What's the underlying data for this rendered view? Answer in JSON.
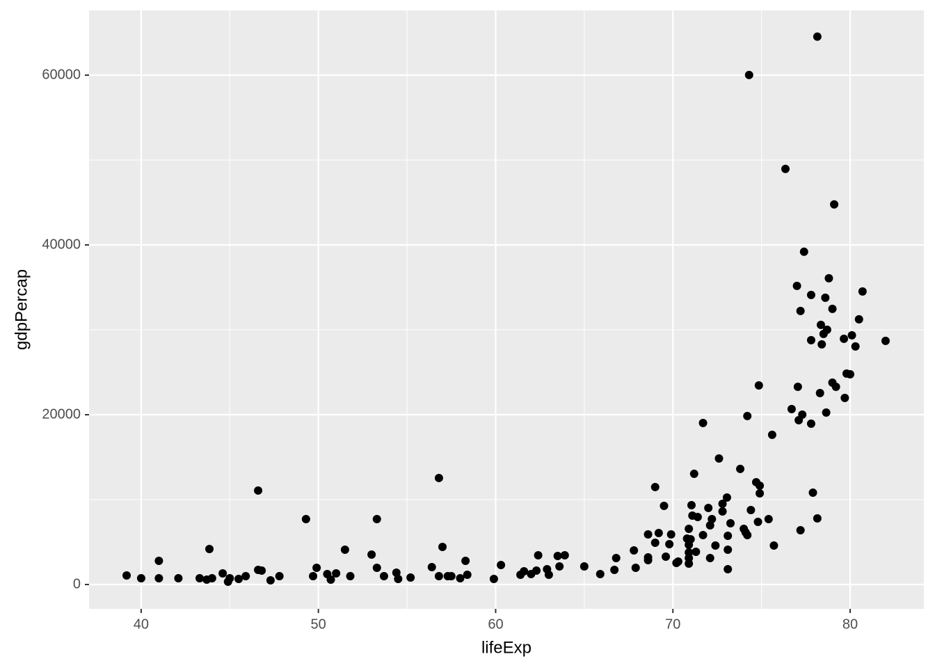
{
  "chart_data": {
    "type": "scatter",
    "x_label": "lifeExp",
    "y_label": "gdpPercap",
    "xlim": [
      37.06,
      84.16
    ],
    "ylim": [
      -2869,
      67623
    ],
    "xticks": [
      40,
      50,
      60,
      70,
      80
    ],
    "yticks": [
      0,
      20000,
      40000,
      60000
    ],
    "grid": true,
    "minor_grid": true,
    "color": "#000000",
    "x": [
      39.18,
      40.0,
      41.0,
      41.0,
      42.1,
      43.3,
      43.7,
      43.85,
      44.0,
      44.6,
      44.9,
      45.0,
      45.5,
      45.9,
      46.6,
      46.6,
      46.8,
      47.3,
      47.8,
      49.3,
      49.7,
      49.9,
      50.5,
      50.7,
      51.0,
      51.5,
      51.8,
      53.0,
      53.3,
      53.3,
      53.7,
      54.4,
      54.5,
      55.2,
      56.4,
      56.8,
      56.8,
      57.0,
      57.3,
      57.5,
      58.0,
      58.3,
      58.4,
      59.9,
      60.3,
      61.4,
      61.6,
      62.0,
      62.3,
      62.4,
      62.9,
      63.0,
      63.5,
      63.6,
      63.9,
      65.0,
      65.9,
      66.7,
      66.8,
      67.8,
      67.9,
      68.6,
      68.6,
      68.6,
      69.0,
      69.0,
      69.2,
      69.5,
      69.6,
      69.8,
      69.9,
      70.2,
      70.3,
      70.8,
      70.9,
      70.9,
      70.9,
      70.9,
      70.9,
      71.0,
      71.05,
      71.1,
      71.2,
      71.3,
      71.4,
      71.7,
      71.7,
      72.0,
      72.1,
      72.1,
      72.2,
      72.4,
      72.6,
      72.8,
      72.8,
      73.05,
      73.1,
      73.1,
      73.1,
      73.25,
      73.8,
      74.0,
      74.1,
      74.2,
      74.2,
      74.3,
      74.4,
      74.7,
      74.8,
      74.85,
      74.9,
      74.9,
      75.4,
      75.6,
      75.7,
      76.35,
      76.7,
      77.0,
      77.05,
      77.1,
      77.2,
      77.2,
      77.3,
      77.4,
      77.8,
      77.8,
      77.8,
      77.9,
      78.15,
      78.15,
      78.3,
      78.35,
      78.4,
      78.5,
      78.6,
      78.65,
      78.7,
      78.8,
      79.0,
      79.0,
      79.1,
      79.2,
      79.65,
      79.7,
      79.8,
      80.0,
      80.1,
      80.3,
      80.5,
      80.7,
      82.0
    ],
    "y": [
      1066,
      738,
      2788,
      738,
      738,
      738,
      574,
      4182,
      738,
      1312,
      328,
      738,
      656,
      984,
      11070,
      1722,
      1640,
      492,
      984,
      7708,
      984,
      1968,
      1230,
      574,
      1312,
      4100,
      984,
      3526,
      7708,
      1968,
      984,
      1394,
      656,
      820,
      2050,
      12546,
      984,
      4428,
      984,
      984,
      738,
      2788,
      1148,
      656,
      2296,
      1148,
      1558,
      1230,
      1640,
      3444,
      1804,
      1148,
      3362,
      2132,
      3444,
      2132,
      1230,
      1722,
      3116,
      4018,
      1968,
      5904,
      3198,
      2870,
      11480,
      4920,
      6068,
      9266,
      3280,
      4756,
      5904,
      2542,
      2706,
      5412,
      6560,
      4674,
      3772,
      3116,
      2460,
      5330,
      9348,
      8118,
      13038,
      3854,
      7954,
      19024,
      5822,
      9020,
      6970,
      3116,
      7708,
      4592,
      14842,
      9512,
      8610,
      10250,
      5740,
      4100,
      1804,
      7216,
      13612,
      6560,
      6150,
      5822,
      19844,
      60024,
      8774,
      12054,
      7380,
      23452,
      11644,
      10742,
      7708,
      17630,
      4592,
      48954,
      20664,
      35178,
      23288,
      19352,
      32226,
      6396,
      20008,
      39196,
      34112,
      18942,
      28782,
      10824,
      64534,
      7790,
      22550,
      30586,
      28290,
      29520,
      33784,
      20254,
      30012,
      36080,
      32472,
      23780,
      44772,
      23288,
      28946,
      21976,
      24846,
      24764,
      29356,
      28044,
      31242,
      34522,
      28700
    ]
  }
}
